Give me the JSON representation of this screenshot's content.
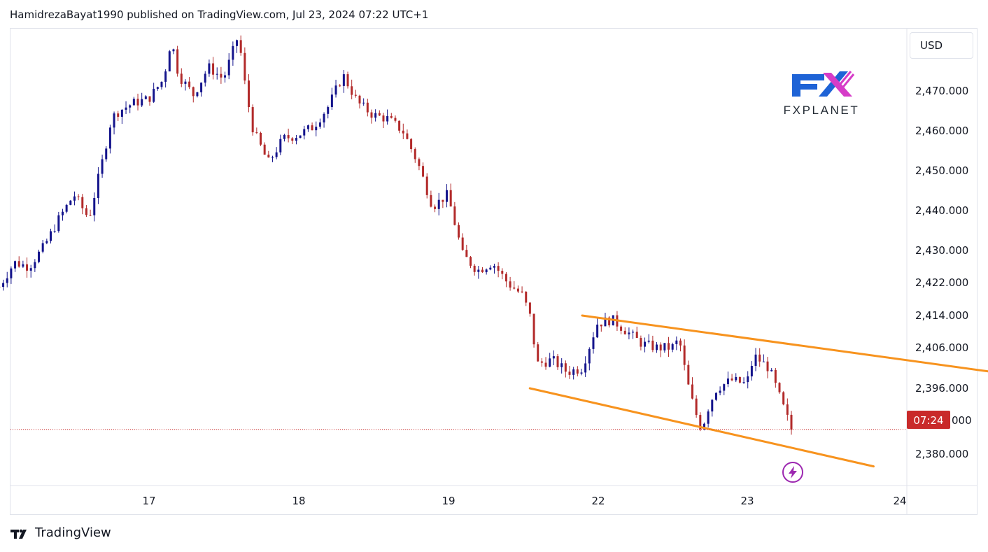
{
  "header": {
    "publish_line": "HamidrezaBayat1990 published on TradingView.com, Jul 23, 2024 07:22 UTC+1"
  },
  "currency_label": "USD",
  "brand": {
    "logo_text": "FXPLANET",
    "colors": {
      "blue": "#1e63d6",
      "pink": "#d63cc8",
      "dark": "#222a33"
    }
  },
  "price_badge": {
    "label": "07:24",
    "price": "2,386.000"
  },
  "footer": {
    "brand": "TradingView"
  },
  "colors": {
    "bull": "#14148c",
    "bear": "#b22a2a",
    "channel": "#f7931e",
    "badge_bg": "#c92a2a",
    "alert_icon": "#9c27b0",
    "grid_border": "#e0e3eb"
  },
  "chart_data": {
    "type": "candlestick",
    "instrument_currency": "USD",
    "y_ticks": [
      "2,470.000",
      "2,460.000",
      "2,450.000",
      "2,440.000",
      "2,430.000",
      "2,422.000",
      "2,414.000",
      "2,406.000",
      "2,396.000",
      "2,380.000"
    ],
    "y_tick_values": [
      2470,
      2460,
      2450,
      2440,
      2430,
      2422,
      2414,
      2406,
      2396,
      2380
    ],
    "x_ticks": [
      "17",
      "18",
      "19",
      "22",
      "23",
      "24"
    ],
    "x_tick_positions": [
      17,
      18,
      19,
      22,
      23,
      24
    ],
    "last_price": 2386,
    "close_path": [
      [
        16.0,
        2421
      ],
      [
        16.1,
        2427
      ],
      [
        16.2,
        2426
      ],
      [
        16.3,
        2431
      ],
      [
        16.4,
        2438
      ],
      [
        16.5,
        2444
      ],
      [
        16.55,
        2441
      ],
      [
        16.6,
        2438
      ],
      [
        16.65,
        2446
      ],
      [
        16.7,
        2454
      ],
      [
        16.75,
        2463
      ],
      [
        16.8,
        2465
      ],
      [
        16.9,
        2467
      ],
      [
        17.0,
        2468
      ],
      [
        17.1,
        2473
      ],
      [
        17.15,
        2483
      ],
      [
        17.2,
        2474
      ],
      [
        17.3,
        2469
      ],
      [
        17.4,
        2476
      ],
      [
        17.5,
        2473
      ],
      [
        17.6,
        2484
      ],
      [
        17.65,
        2470
      ],
      [
        17.7,
        2460
      ],
      [
        17.8,
        2452
      ],
      [
        17.9,
        2458
      ],
      [
        18.0,
        2459
      ],
      [
        18.1,
        2461
      ],
      [
        18.2,
        2466
      ],
      [
        18.3,
        2474
      ],
      [
        18.4,
        2467
      ],
      [
        18.5,
        2464
      ],
      [
        18.6,
        2463
      ],
      [
        18.7,
        2460
      ],
      [
        18.8,
        2452
      ],
      [
        18.9,
        2441
      ],
      [
        19.0,
        2444
      ],
      [
        19.1,
        2429
      ],
      [
        19.2,
        2425
      ],
      [
        19.3,
        2427
      ],
      [
        19.4,
        2422
      ],
      [
        19.5,
        2419
      ],
      [
        19.55,
        2414
      ],
      [
        19.6,
        2402
      ],
      [
        19.7,
        2403
      ],
      [
        19.8,
        2400
      ],
      [
        19.9,
        2401
      ],
      [
        20.0,
        2412
      ],
      [
        20.1,
        2413
      ],
      [
        20.2,
        2410
      ],
      [
        20.3,
        2407
      ],
      [
        20.4,
        2406
      ],
      [
        20.5,
        2406
      ],
      [
        20.55,
        2408
      ],
      [
        20.6,
        2398
      ],
      [
        20.65,
        2391
      ],
      [
        20.7,
        2386
      ],
      [
        20.75,
        2392
      ],
      [
        20.8,
        2396
      ],
      [
        20.9,
        2398
      ],
      [
        21.0,
        2397
      ],
      [
        21.05,
        2404
      ],
      [
        21.15,
        2401
      ],
      [
        21.3,
        2386
      ]
    ],
    "channel": {
      "upper": [
        [
          19.9,
          2414
        ],
        [
          22.65,
          2400
        ]
      ],
      "lower": [
        [
          19.55,
          2396
        ],
        [
          21.85,
          2377
        ]
      ]
    }
  }
}
